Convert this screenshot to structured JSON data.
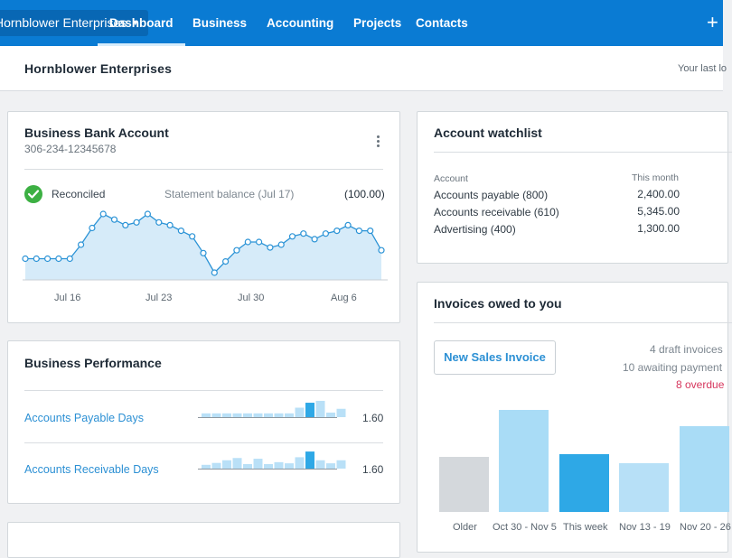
{
  "nav": {
    "org_name": "Hornblower Enterprises",
    "items": [
      "Dashboard",
      "Business",
      "Accounting",
      "Projects",
      "Contacts"
    ],
    "active": "Dashboard"
  },
  "header": {
    "title": "Hornblower Enterprises",
    "last_login_text": "Your last lo"
  },
  "bank_account": {
    "title": "Business Bank Account",
    "account_number": "306-234-12345678",
    "status": "Reconciled",
    "statement_label": "Statement balance (Jul 17)",
    "statement_value": "(100.00)",
    "chart_data": {
      "type": "area",
      "x_ticks": [
        "Jul 16",
        "Jul 23",
        "Jul 30",
        "Aug 6"
      ],
      "values": [
        0,
        0,
        0,
        0,
        0,
        0.5,
        1.1,
        1.6,
        1.4,
        1.2,
        1.3,
        1.6,
        1.3,
        1.2,
        1.0,
        0.8,
        0.2,
        -0.5,
        -0.1,
        0.3,
        0.6,
        0.6,
        0.4,
        0.5,
        0.8,
        0.9,
        0.7,
        0.9,
        1.0,
        1.2,
        1.0,
        1.0,
        0.3
      ],
      "color": "#2b93d6",
      "fill": "#d6ebf9"
    }
  },
  "performance": {
    "title": "Business Performance",
    "rows": [
      {
        "label": "Accounts Payable Days",
        "value": "1.60",
        "bars": [
          1,
          1,
          1,
          1,
          1,
          1,
          1,
          1,
          1,
          2.5,
          3.8,
          4.3,
          1.2,
          2.2
        ],
        "highlight": 10
      },
      {
        "label": "Accounts Receivable Days",
        "value": "1.60",
        "bars": [
          1,
          1.5,
          2.2,
          2.8,
          1.2,
          2.6,
          1.2,
          1.7,
          1.4,
          3.0,
          4.5,
          2.2,
          1.4,
          2.2
        ],
        "highlight": 10
      }
    ]
  },
  "watchlist": {
    "title": "Account watchlist",
    "col_account": "Account",
    "col_month": "This month",
    "rows": [
      {
        "name": "Accounts payable (800)",
        "value": "2,400.00"
      },
      {
        "name": "Accounts receivable (610)",
        "value": "5,345.00"
      },
      {
        "name": "Advertising (400)",
        "value": "1,300.00"
      }
    ]
  },
  "invoices": {
    "title": "Invoices owed to you",
    "new_button": "New Sales Invoice",
    "draft_text": "4 draft invoices",
    "awaiting_text": "10 awaiting payment",
    "overdue_text": "8 overdue",
    "chart_data": {
      "type": "bar",
      "categories": [
        "Older",
        "Oct 30 - Nov 5",
        "This week",
        "Nov 13 - 19",
        "Nov 20 - 26"
      ],
      "values": [
        61,
        113,
        64,
        54,
        95
      ],
      "colors": [
        "#d4d8dc",
        "#a9dcf6",
        "#2ea8e6",
        "#b7e0f7",
        "#a9dcf6"
      ]
    }
  },
  "colors": {
    "brand_blue": "#0a7bd3",
    "link_blue": "#2c90d4",
    "overdue_red": "#d6365d",
    "success_green": "#3cb043"
  }
}
